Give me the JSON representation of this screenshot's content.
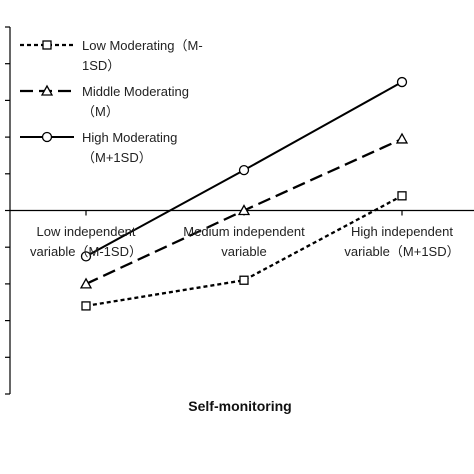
{
  "chart_data": {
    "type": "line",
    "title": "",
    "xlabel": "Self-monitoring",
    "ylabel": "",
    "categories": [
      [
        "Low independent",
        "variable（M-1SD）"
      ],
      [
        "Medium independent",
        "variable"
      ],
      [
        "High independent",
        "variable（M+1SD）"
      ]
    ],
    "ylim": [
      -5,
      5
    ],
    "grid": false,
    "legend_position": "top-left",
    "series": [
      {
        "name_lines": [
          "Low Moderating（M-",
          "1SD）"
        ],
        "marker": "square",
        "dash": "dotted",
        "color": "#000000",
        "values": [
          -2.6,
          -1.9,
          0.4
        ]
      },
      {
        "name_lines": [
          "Middle Moderating",
          "（M）"
        ],
        "marker": "triangle",
        "dash": "dashed",
        "color": "#000000",
        "values": [
          -2.0,
          0.0,
          1.95
        ]
      },
      {
        "name_lines": [
          "High Moderating",
          "（M+1SD）"
        ],
        "marker": "circle",
        "dash": "solid",
        "color": "#000000",
        "values": [
          -1.25,
          1.1,
          3.5
        ]
      }
    ]
  }
}
